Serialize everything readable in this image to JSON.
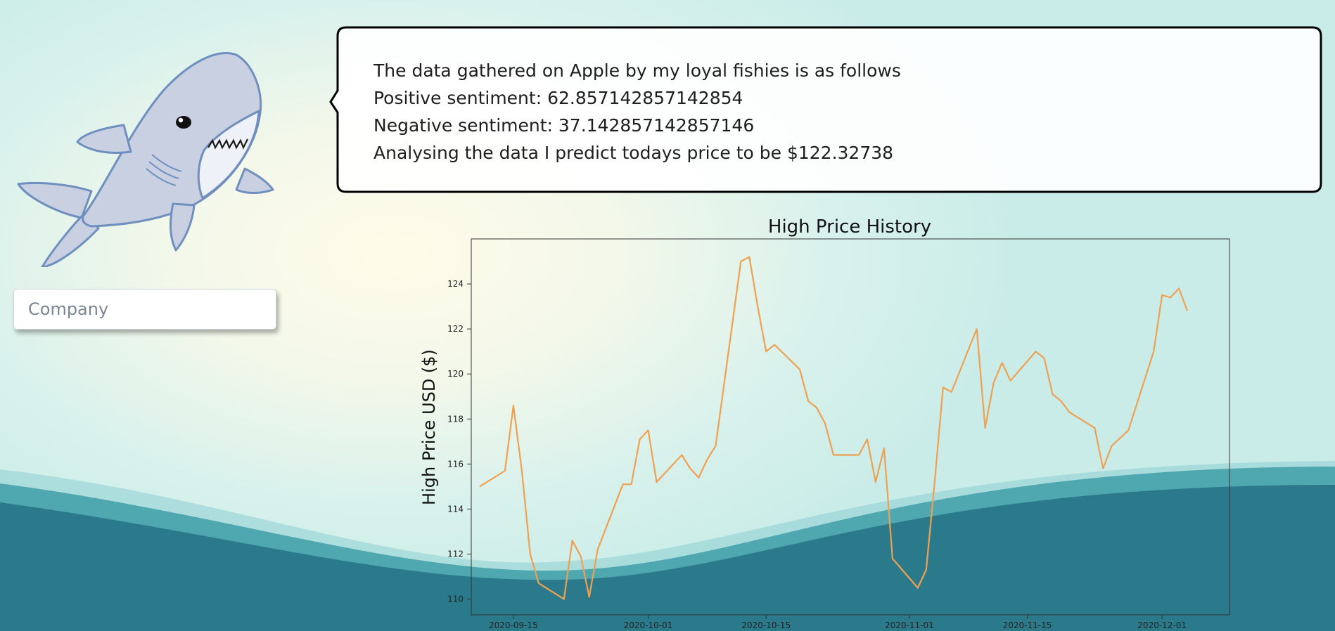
{
  "company_input": {
    "placeholder": "Company",
    "value": ""
  },
  "speech_bubble": {
    "lines": [
      "The data gathered on Apple by my loyal fishies is as follows",
      "Positive sentiment: 62.857142857142854",
      "Negative sentiment: 37.142857142857146",
      "Analysing the data I predict todays price to be $122.32738"
    ]
  },
  "colors": {
    "line": "#f0a050",
    "wave_dark": "#0c5570",
    "wave_mid": "#4fa7b0",
    "wave_light": "#8ccfd2",
    "bubble_border": "#000000"
  },
  "chart_data": {
    "type": "line",
    "title": "High Price History",
    "xlabel": "",
    "ylabel": "High Price USD ($)",
    "x_tick_labels": [
      "2020-09-15",
      "2020-10-01",
      "2020-10-15",
      "2020-11-01",
      "2020-11-15",
      "2020-12-01"
    ],
    "y_ticks": [
      110,
      112,
      114,
      116,
      118,
      120,
      122,
      124
    ],
    "xlim": [
      "2020-09-10",
      "2020-12-09"
    ],
    "ylim": [
      109.3,
      126.0
    ],
    "grid": false,
    "series": [
      {
        "x": [
          "2020-09-11",
          "2020-09-14",
          "2020-09-15",
          "2020-09-16",
          "2020-09-17",
          "2020-09-18",
          "2020-09-21",
          "2020-09-22",
          "2020-09-23",
          "2020-09-24",
          "2020-09-25",
          "2020-09-28",
          "2020-09-29",
          "2020-09-30",
          "2020-10-01",
          "2020-10-02",
          "2020-10-05",
          "2020-10-06",
          "2020-10-07",
          "2020-10-08",
          "2020-10-09",
          "2020-10-12",
          "2020-10-13",
          "2020-10-14",
          "2020-10-15",
          "2020-10-16",
          "2020-10-19",
          "2020-10-20",
          "2020-10-21",
          "2020-10-22",
          "2020-10-23",
          "2020-10-26",
          "2020-10-27",
          "2020-10-28",
          "2020-10-29",
          "2020-10-30",
          "2020-11-02",
          "2020-11-03",
          "2020-11-04",
          "2020-11-05",
          "2020-11-06",
          "2020-11-09",
          "2020-11-10",
          "2020-11-11",
          "2020-11-12",
          "2020-11-13",
          "2020-11-16",
          "2020-11-17",
          "2020-11-18",
          "2020-11-19",
          "2020-11-20",
          "2020-11-23",
          "2020-11-24",
          "2020-11-25",
          "2020-11-27",
          "2020-11-30",
          "2020-12-01",
          "2020-12-02",
          "2020-12-03",
          "2020-12-04"
        ],
        "y": [
          115.0,
          115.7,
          118.6,
          115.7,
          112.0,
          110.7,
          110.0,
          112.6,
          111.9,
          110.1,
          112.2,
          115.1,
          115.1,
          117.1,
          117.5,
          115.2,
          116.4,
          115.8,
          115.4,
          116.2,
          116.8,
          125.0,
          125.2,
          123.0,
          121.0,
          121.3,
          120.2,
          118.8,
          118.5,
          117.8,
          116.4,
          116.4,
          117.1,
          115.2,
          116.7,
          111.8,
          110.5,
          111.3,
          115.2,
          119.4,
          119.2,
          122.0,
          117.6,
          119.6,
          120.5,
          119.7,
          121.0,
          120.7,
          119.1,
          118.8,
          118.3,
          117.6,
          115.8,
          116.8,
          117.5,
          121.0,
          123.5,
          123.4,
          123.8,
          122.8
        ]
      }
    ]
  }
}
